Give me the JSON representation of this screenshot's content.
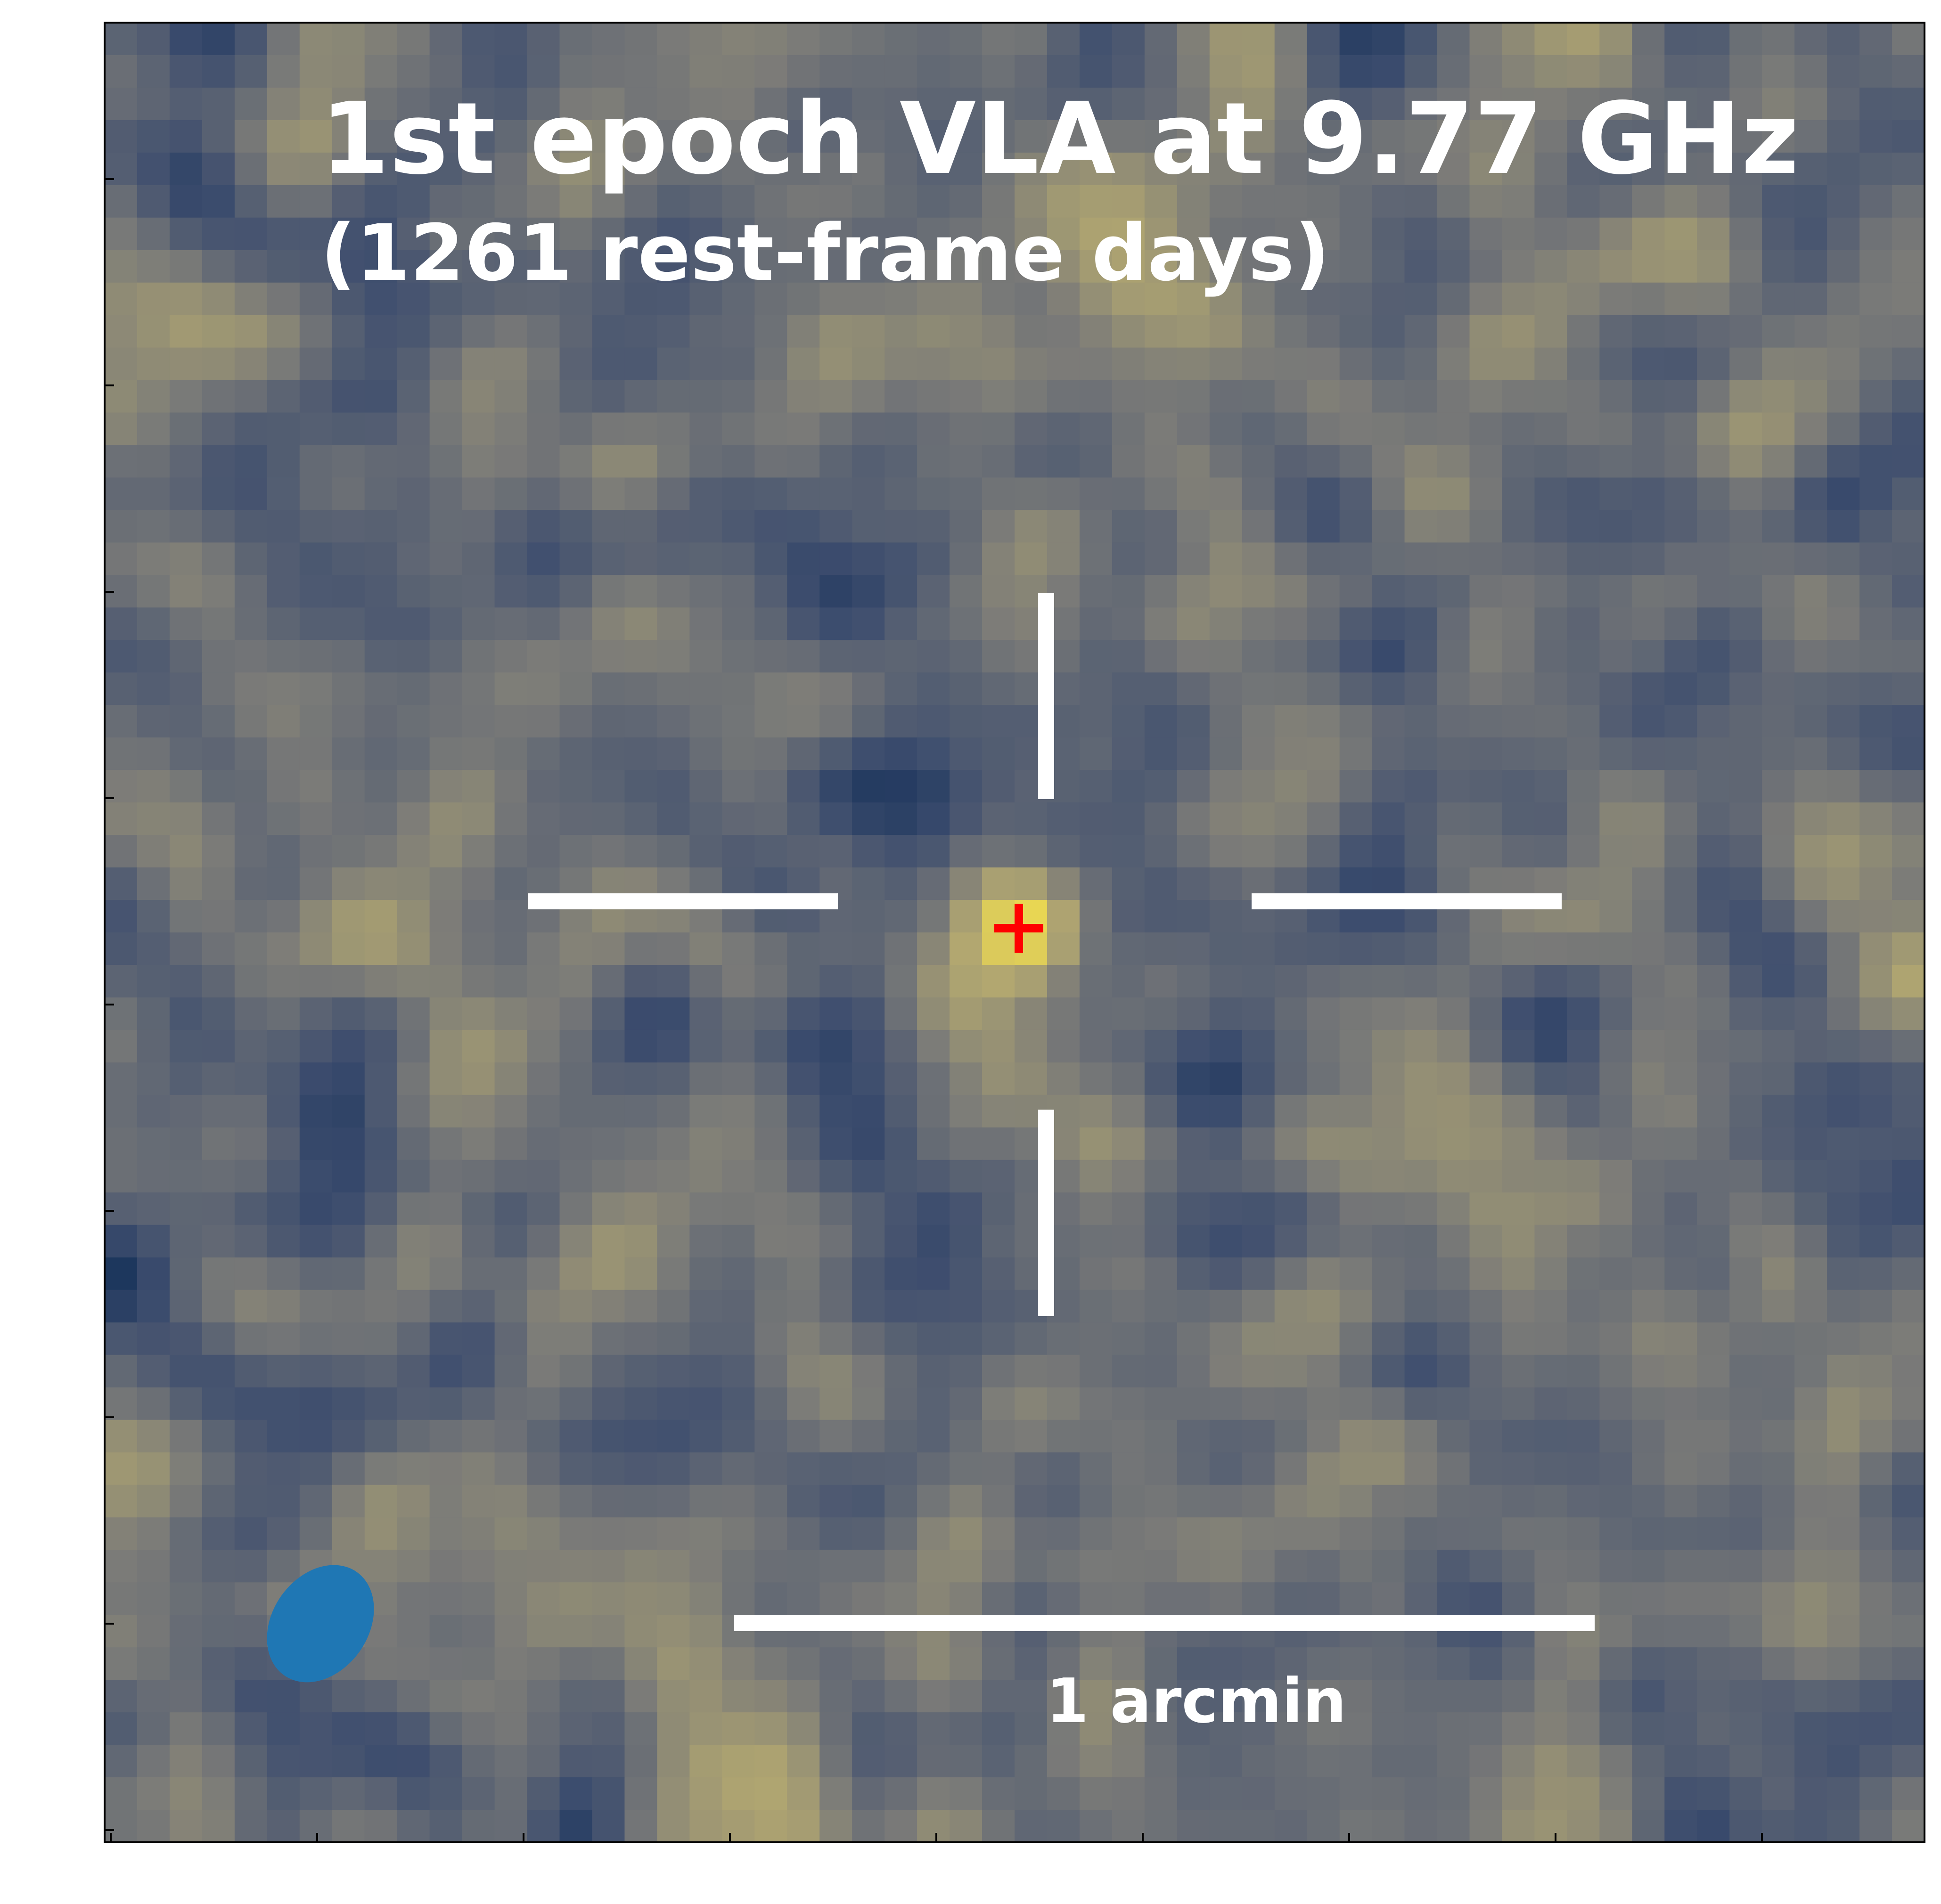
{
  "title": {
    "line1": "1st epoch VLA at 9.77 GHz",
    "line2": "(1261 rest-frame days)"
  },
  "scalebar": {
    "label": "1 arcmin"
  },
  "image": {
    "colormap": "cividis",
    "grid_cols": 56,
    "grid_rows": 56,
    "seed": 9771261,
    "source_marker_color": "#ff0000",
    "beam_color": "#1f77b4",
    "overlay_color": "#ffffff"
  }
}
